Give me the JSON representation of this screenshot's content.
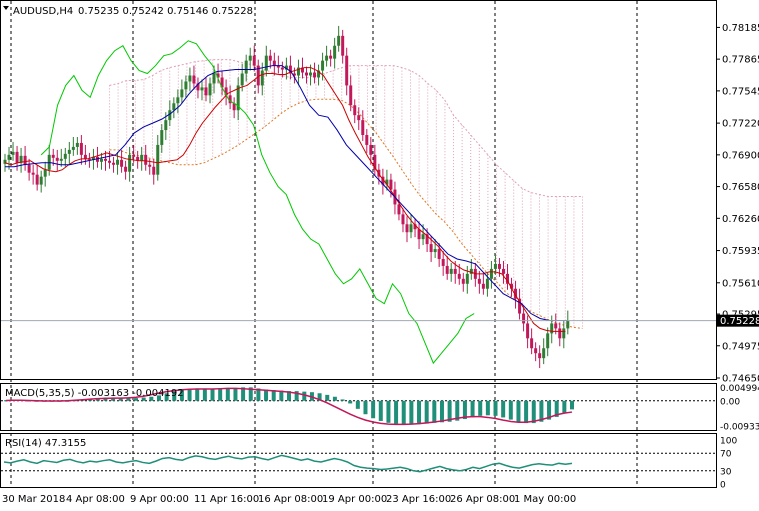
{
  "header": {
    "symbol_label": "AUDUSD,H4",
    "ohlc_text": "0.75235 0.75242 0.75146 0.75228"
  },
  "macd_header": "MACD(5,35,5) -0.003163 -0.004192",
  "rsi_header": "RSI(14) 47.3155",
  "colors": {
    "bull": "#2e7d32",
    "bear": "#c2185b",
    "tenkan": "#cc0000",
    "kijun": "#0000aa",
    "chikou": "#00c800",
    "cloud_a": "#e0a0b8",
    "cloud_b": "#e07820",
    "macd_hist": "#1f8f7a",
    "macd_signal": "#c2185b",
    "rsi_line": "#1f8f7a"
  },
  "chart_data": {
    "type": "candlestick",
    "ylim": [
      0.7465,
      0.783
    ],
    "y_ticks": [
      "0.78185",
      "0.77865",
      "0.77545",
      "0.77220",
      "0.76900",
      "0.76580",
      "0.76260",
      "0.75935",
      "0.75610",
      "0.75295",
      "0.74975",
      "0.74650"
    ],
    "current_price": "0.75228",
    "x_labels": [
      "30 Mar 2018",
      "4 Apr 08:00",
      "9 Apr 00:00",
      "11 Apr 16:00",
      "16 Apr 08:00",
      "19 Apr 00:00",
      "23 Apr 16:00",
      "26 Apr 08:00",
      "1 May 00:00"
    ],
    "candles_close": [
      0.7685,
      0.769,
      0.7693,
      0.7682,
      0.7689,
      0.768,
      0.7672,
      0.767,
      0.766,
      0.7668,
      0.7675,
      0.769,
      0.7687,
      0.7684,
      0.7686,
      0.7691,
      0.7695,
      0.7698,
      0.7702,
      0.769,
      0.7686,
      0.7685,
      0.7688,
      0.7683,
      0.7686,
      0.7684,
      0.7682,
      0.768,
      0.7685,
      0.7678,
      0.7673,
      0.769,
      0.7688,
      0.7684,
      0.769,
      0.768,
      0.7678,
      0.767,
      0.77,
      0.7715,
      0.7725,
      0.7735,
      0.7742,
      0.7748,
      0.7756,
      0.7764,
      0.777,
      0.7762,
      0.7755,
      0.7758,
      0.775,
      0.7762,
      0.7772,
      0.7768,
      0.7758,
      0.775,
      0.7742,
      0.7735,
      0.776,
      0.7772,
      0.7785,
      0.779,
      0.778,
      0.776,
      0.7775,
      0.779,
      0.7785,
      0.778,
      0.7778,
      0.7776,
      0.778,
      0.7772,
      0.777,
      0.7778,
      0.7773,
      0.777,
      0.7773,
      0.7768,
      0.7775,
      0.7785,
      0.779,
      0.7787,
      0.78,
      0.781,
      0.779,
      0.776,
      0.774,
      0.773,
      0.7725,
      0.771,
      0.77,
      0.769,
      0.7675,
      0.7668,
      0.766,
      0.7665,
      0.7655,
      0.764,
      0.763,
      0.762,
      0.7612,
      0.762,
      0.7615,
      0.7605,
      0.761,
      0.76,
      0.7592,
      0.7595,
      0.7585,
      0.7578,
      0.757,
      0.7575,
      0.757,
      0.7565,
      0.756,
      0.757,
      0.7575,
      0.7565,
      0.756,
      0.7555,
      0.7565,
      0.7575,
      0.758,
      0.7575,
      0.757,
      0.756,
      0.7555,
      0.7545,
      0.753,
      0.752,
      0.7505,
      0.7495,
      0.749,
      0.7485,
      0.7495,
      0.751,
      0.752,
      0.7515,
      0.7505,
      0.7515,
      0.7523
    ],
    "tenkan_sen": [
      0.7682,
      0.768,
      0.7682,
      0.7683,
      0.7684,
      0.768,
      0.7676,
      0.7674,
      0.7673,
      0.7675,
      0.768,
      0.7684,
      0.7686,
      0.7686,
      0.7688,
      0.769,
      0.7692,
      0.769,
      0.7688,
      0.7686,
      0.7685,
      0.7684,
      0.7684,
      0.7683,
      0.7682,
      0.7683,
      0.7684,
      0.7685,
      0.769,
      0.77,
      0.7712,
      0.7722,
      0.773,
      0.7738,
      0.7745,
      0.7752,
      0.7755,
      0.7758,
      0.776,
      0.7765,
      0.777,
      0.7772,
      0.7772,
      0.7771,
      0.7771,
      0.7774,
      0.7776,
      0.7778,
      0.7778,
      0.7775,
      0.777,
      0.776,
      0.775,
      0.774,
      0.7725,
      0.7712,
      0.77,
      0.7688,
      0.7678,
      0.7668,
      0.766,
      0.765,
      0.764,
      0.763,
      0.7622,
      0.7615,
      0.761,
      0.7604,
      0.7598,
      0.759,
      0.7583,
      0.7578,
      0.7574,
      0.7572,
      0.757,
      0.757,
      0.7572,
      0.7572,
      0.757,
      0.7562,
      0.755,
      0.754,
      0.753,
      0.752,
      0.7515,
      0.7513,
      0.7512,
      0.7512,
      0.7512
    ],
    "kijun_sen": [
      0.7678,
      0.7678,
      0.768,
      0.7681,
      0.7682,
      0.7682,
      0.768,
      0.768,
      0.7682,
      0.7684,
      0.7686,
      0.7688,
      0.769,
      0.77,
      0.7712,
      0.7718,
      0.7722,
      0.7726,
      0.7732,
      0.774,
      0.7752,
      0.7762,
      0.777,
      0.7774,
      0.7775,
      0.7776,
      0.7776,
      0.7776,
      0.7778,
      0.778,
      0.778,
      0.7774,
      0.7758,
      0.774,
      0.773,
      0.7728,
      0.7715,
      0.77,
      0.769,
      0.768,
      0.767,
      0.766,
      0.765,
      0.764,
      0.763,
      0.762,
      0.761,
      0.76,
      0.759,
      0.7585,
      0.7583,
      0.758,
      0.757,
      0.756,
      0.755,
      0.7545,
      0.754,
      0.753,
      0.7525,
      0.7523,
      0.7523,
      0.7523
    ],
    "chikou": [
      0.769,
      0.7698,
      0.774,
      0.776,
      0.777,
      0.7755,
      0.7748,
      0.777,
      0.7785,
      0.7795,
      0.78,
      0.7785,
      0.7775,
      0.7772,
      0.778,
      0.779,
      0.7792,
      0.7798,
      0.7805,
      0.7802,
      0.779,
      0.778,
      0.776,
      0.7745,
      0.774,
      0.7732,
      0.772,
      0.769,
      0.7672,
      0.7658,
      0.765,
      0.763,
      0.7615,
      0.7605,
      0.76,
      0.7585,
      0.757,
      0.756,
      0.7565,
      0.7575,
      0.756,
      0.7545,
      0.754,
      0.756,
      0.755,
      0.753,
      0.752,
      0.75,
      0.748,
      0.749,
      0.75,
      0.751,
      0.7525,
      0.753
    ],
    "cloud_top": [
      0.776,
      0.7762,
      0.7765,
      0.7765,
      0.7766,
      0.777,
      0.7775,
      0.7778,
      0.778,
      0.7782,
      0.7784,
      0.7785,
      0.7786,
      0.7786,
      0.7786,
      0.7784,
      0.7782,
      0.778,
      0.7776,
      0.7773,
      0.777,
      0.7768,
      0.7768,
      0.7768,
      0.777,
      0.7772,
      0.7775,
      0.7778,
      0.778,
      0.778,
      0.778,
      0.778,
      0.778,
      0.778,
      0.7778,
      0.7775,
      0.777,
      0.7762,
      0.7755,
      0.7745,
      0.773,
      0.772,
      0.771,
      0.77,
      0.769,
      0.768,
      0.7672,
      0.7664,
      0.7656,
      0.7652,
      0.765,
      0.7648,
      0.7648,
      0.7648,
      0.7648,
      0.7648
    ],
    "cloud_bottom": [
      0.7695,
      0.7695,
      0.7692,
      0.769,
      0.7688,
      0.7686,
      0.7684,
      0.7682,
      0.768,
      0.768,
      0.768,
      0.7682,
      0.7686,
      0.769,
      0.7695,
      0.77,
      0.7706,
      0.7712,
      0.7718,
      0.7725,
      0.7732,
      0.7738,
      0.7742,
      0.7745,
      0.7746,
      0.7746,
      0.7746,
      0.7745,
      0.774,
      0.7732,
      0.7722,
      0.7712,
      0.77,
      0.7688,
      0.7675,
      0.7662,
      0.765,
      0.764,
      0.763,
      0.7622,
      0.7612,
      0.76,
      0.759,
      0.758,
      0.757,
      0.7562,
      0.7552,
      0.7545,
      0.7538,
      0.7532,
      0.7528,
      0.7524,
      0.752,
      0.7518,
      0.7516,
      0.7515
    ],
    "macd": {
      "ylim": [
        -0.0105,
        0.0055
      ],
      "y_ticks": [
        "0.004994",
        "0.00",
        "-0.009335"
      ],
      "current": -0.003163,
      "signal_current": -0.004192,
      "histogram": [
        0.0002,
        0.0004,
        0.0003,
        0.0001,
        -0.0001,
        -0.0002,
        -0.0003,
        -0.0002,
        0.0,
        0.0002,
        0.0005,
        0.0008,
        0.001,
        0.0012,
        0.0012,
        0.0011,
        0.001,
        0.001,
        0.0012,
        0.0015,
        0.002,
        0.0028,
        0.0035,
        0.004,
        0.0044,
        0.0046,
        0.0046,
        0.0045,
        0.0044,
        0.0045,
        0.0048,
        0.005,
        0.005,
        0.0046,
        0.0042,
        0.004,
        0.0038,
        0.0036,
        0.0036,
        0.0034,
        0.0032,
        0.0028,
        0.0022,
        0.0015,
        0.0005,
        -0.001,
        -0.003,
        -0.005,
        -0.0065,
        -0.0075,
        -0.0082,
        -0.0086,
        -0.0088,
        -0.0088,
        -0.0087,
        -0.0085,
        -0.0082,
        -0.008,
        -0.0078,
        -0.0074,
        -0.0068,
        -0.0062,
        -0.0056,
        -0.0054,
        -0.0056,
        -0.0062,
        -0.007,
        -0.0078,
        -0.0083,
        -0.0083,
        -0.0078,
        -0.007,
        -0.006,
        -0.0045,
        -0.0032
      ],
      "signal": [
        0.0001,
        0.0002,
        0.0002,
        0.0001,
        0.0,
        -0.0001,
        -0.0001,
        -0.0001,
        0.0,
        0.0002,
        0.0004,
        0.0006,
        0.0008,
        0.0009,
        0.001,
        0.001,
        0.0011,
        0.0013,
        0.0017,
        0.0023,
        0.0029,
        0.0034,
        0.0038,
        0.0041,
        0.0043,
        0.0044,
        0.0044,
        0.0044,
        0.0045,
        0.0046,
        0.0046,
        0.0045,
        0.0043,
        0.0041,
        0.0039,
        0.0037,
        0.0035,
        0.0032,
        0.0028,
        0.0022,
        0.0014,
        0.0004,
        -0.0008,
        -0.0022,
        -0.0036,
        -0.005,
        -0.0062,
        -0.0072,
        -0.0079,
        -0.0084,
        -0.0087,
        -0.0088,
        -0.0088,
        -0.0087,
        -0.0085,
        -0.0082,
        -0.0079,
        -0.0075,
        -0.007,
        -0.0065,
        -0.0061,
        -0.0059,
        -0.0059,
        -0.0062,
        -0.0066,
        -0.0072,
        -0.0077,
        -0.008,
        -0.008,
        -0.0076,
        -0.007,
        -0.0062,
        -0.0052,
        -0.0046,
        -0.0042
      ]
    },
    "rsi": {
      "ylim": [
        0,
        100
      ],
      "levels": [
        70,
        30
      ],
      "y_ticks": [
        "100",
        "70",
        "30",
        "0"
      ],
      "current": 47.3155,
      "values": [
        50,
        48,
        52,
        55,
        50,
        47,
        53,
        51,
        49,
        54,
        56,
        51,
        48,
        52,
        50,
        53,
        55,
        50,
        48,
        51,
        53,
        49,
        47,
        52,
        58,
        60,
        56,
        54,
        60,
        64,
        62,
        58,
        56,
        60,
        63,
        59,
        57,
        61,
        62,
        58,
        55,
        60,
        65,
        62,
        58,
        54,
        57,
        52,
        50,
        54,
        58,
        55,
        50,
        42,
        38,
        36,
        35,
        33,
        34,
        36,
        38,
        35,
        30,
        28,
        32,
        36,
        40,
        35,
        32,
        30,
        33,
        38,
        35,
        40,
        45,
        47,
        42,
        38,
        36,
        40,
        44,
        46,
        44,
        43,
        47,
        45,
        47
      ]
    }
  }
}
